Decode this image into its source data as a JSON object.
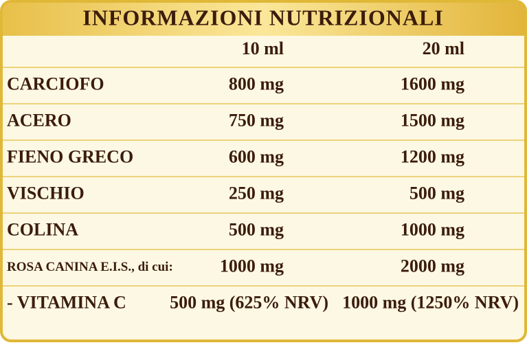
{
  "header": {
    "title": "INFORMAZIONI NUTRIZIONALI"
  },
  "table": {
    "columns": [
      "10 ml",
      "20 ml"
    ],
    "rows": [
      [
        "CARCIOFO",
        "800 mg",
        "1600 mg"
      ],
      [
        "ACERO",
        "750 mg",
        "1500 mg"
      ],
      [
        "FIENO GRECO",
        "600 mg",
        "1200 mg"
      ],
      [
        "VISCHIO",
        "250 mg",
        "500 mg"
      ],
      [
        "COLINA",
        "500 mg",
        "1000 mg"
      ],
      [
        "ROSA CANINA E.I.S., di cui:",
        "1000 mg",
        "2000 mg"
      ],
      [
        "- VITAMINA C",
        "500 mg (625% NRV)",
        "1000 mg (1250% NRV)"
      ]
    ]
  }
}
